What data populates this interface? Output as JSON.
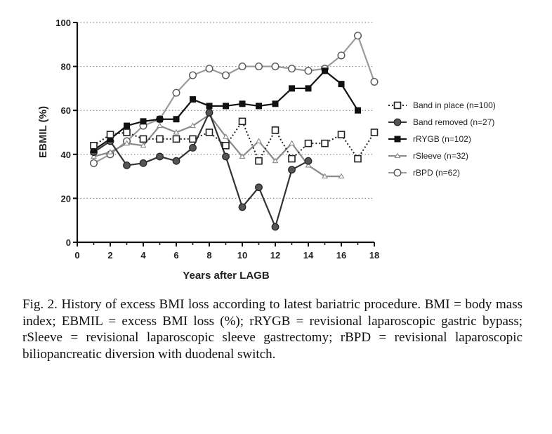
{
  "chart_data": {
    "type": "line",
    "xlabel": "Years after LAGB",
    "ylabel": "EBMIL (%)",
    "xlim": [
      0,
      18
    ],
    "ylim": [
      0,
      100
    ],
    "xticks": [
      "0",
      "2",
      "4",
      "6",
      "8",
      "10",
      "12",
      "14",
      "16",
      "18"
    ],
    "yticks": [
      "0",
      "20",
      "40",
      "60",
      "80",
      "100"
    ],
    "grid": "horizontal dotted",
    "legend_position": "right",
    "series": [
      {
        "name": "Band in place (n=100)",
        "marker": "open-square",
        "line": "dotted",
        "color": "#222222",
        "x": [
          1,
          2,
          3,
          4,
          5,
          6,
          7,
          8,
          9,
          10,
          11,
          12,
          13,
          14,
          15,
          16,
          17,
          18
        ],
        "y": [
          44,
          49,
          50,
          47,
          47,
          47,
          47,
          50,
          44,
          55,
          37,
          51,
          38,
          45,
          45,
          49,
          38,
          50
        ]
      },
      {
        "name": "Band removed (n=27)",
        "marker": "filled-circle",
        "line": "solid",
        "color": "#333333",
        "x": [
          1,
          2,
          3,
          4,
          5,
          6,
          7,
          8,
          9,
          10,
          11,
          12,
          13,
          14
        ],
        "y": [
          41,
          46,
          35,
          36,
          39,
          37,
          43,
          59,
          39,
          16,
          25,
          7,
          33,
          37
        ]
      },
      {
        "name": "rRYGB (n=102)",
        "marker": "filled-square",
        "line": "solid",
        "color": "#111111",
        "x": [
          1,
          2,
          3,
          4,
          5,
          6,
          7,
          8,
          9,
          10,
          11,
          12,
          13,
          14,
          15,
          16,
          17
        ],
        "y": [
          42,
          47,
          53,
          55,
          56,
          56,
          65,
          62,
          62,
          63,
          62,
          63,
          70,
          70,
          78,
          72,
          60
        ]
      },
      {
        "name": "rSleeve (n=32)",
        "marker": "open-triangle",
        "line": "solid",
        "color": "#8a8a8a",
        "x": [
          1,
          2,
          3,
          4,
          5,
          6,
          7,
          8,
          9,
          10,
          11,
          12,
          13,
          14,
          15,
          16
        ],
        "y": [
          39,
          41,
          45,
          44,
          53,
          50,
          53,
          58,
          48,
          39,
          46,
          37,
          45,
          35,
          30,
          30
        ]
      },
      {
        "name": "rBPD (n=62)",
        "marker": "open-circle",
        "line": "solid",
        "color": "#9a9a9a",
        "x": [
          1,
          2,
          3,
          4,
          5,
          6,
          7,
          8,
          9,
          10,
          11,
          12,
          13,
          14,
          15,
          16,
          17,
          18
        ],
        "y": [
          36,
          40,
          46,
          53,
          56,
          68,
          76,
          79,
          76,
          80,
          80,
          80,
          79,
          78,
          79,
          85,
          94,
          73
        ]
      }
    ]
  },
  "caption": "Fig. 2. History of excess BMI loss according to latest bariatric procedure. BMI = body mass index; EBMIL = excess BMI loss (%); rRYGB = revisional laparoscopic gastric bypass; rSleeve = revisional laparoscopic sleeve gastrectomy; rBPD = revisional laparoscopic biliopancreatic diversion with duodenal switch."
}
